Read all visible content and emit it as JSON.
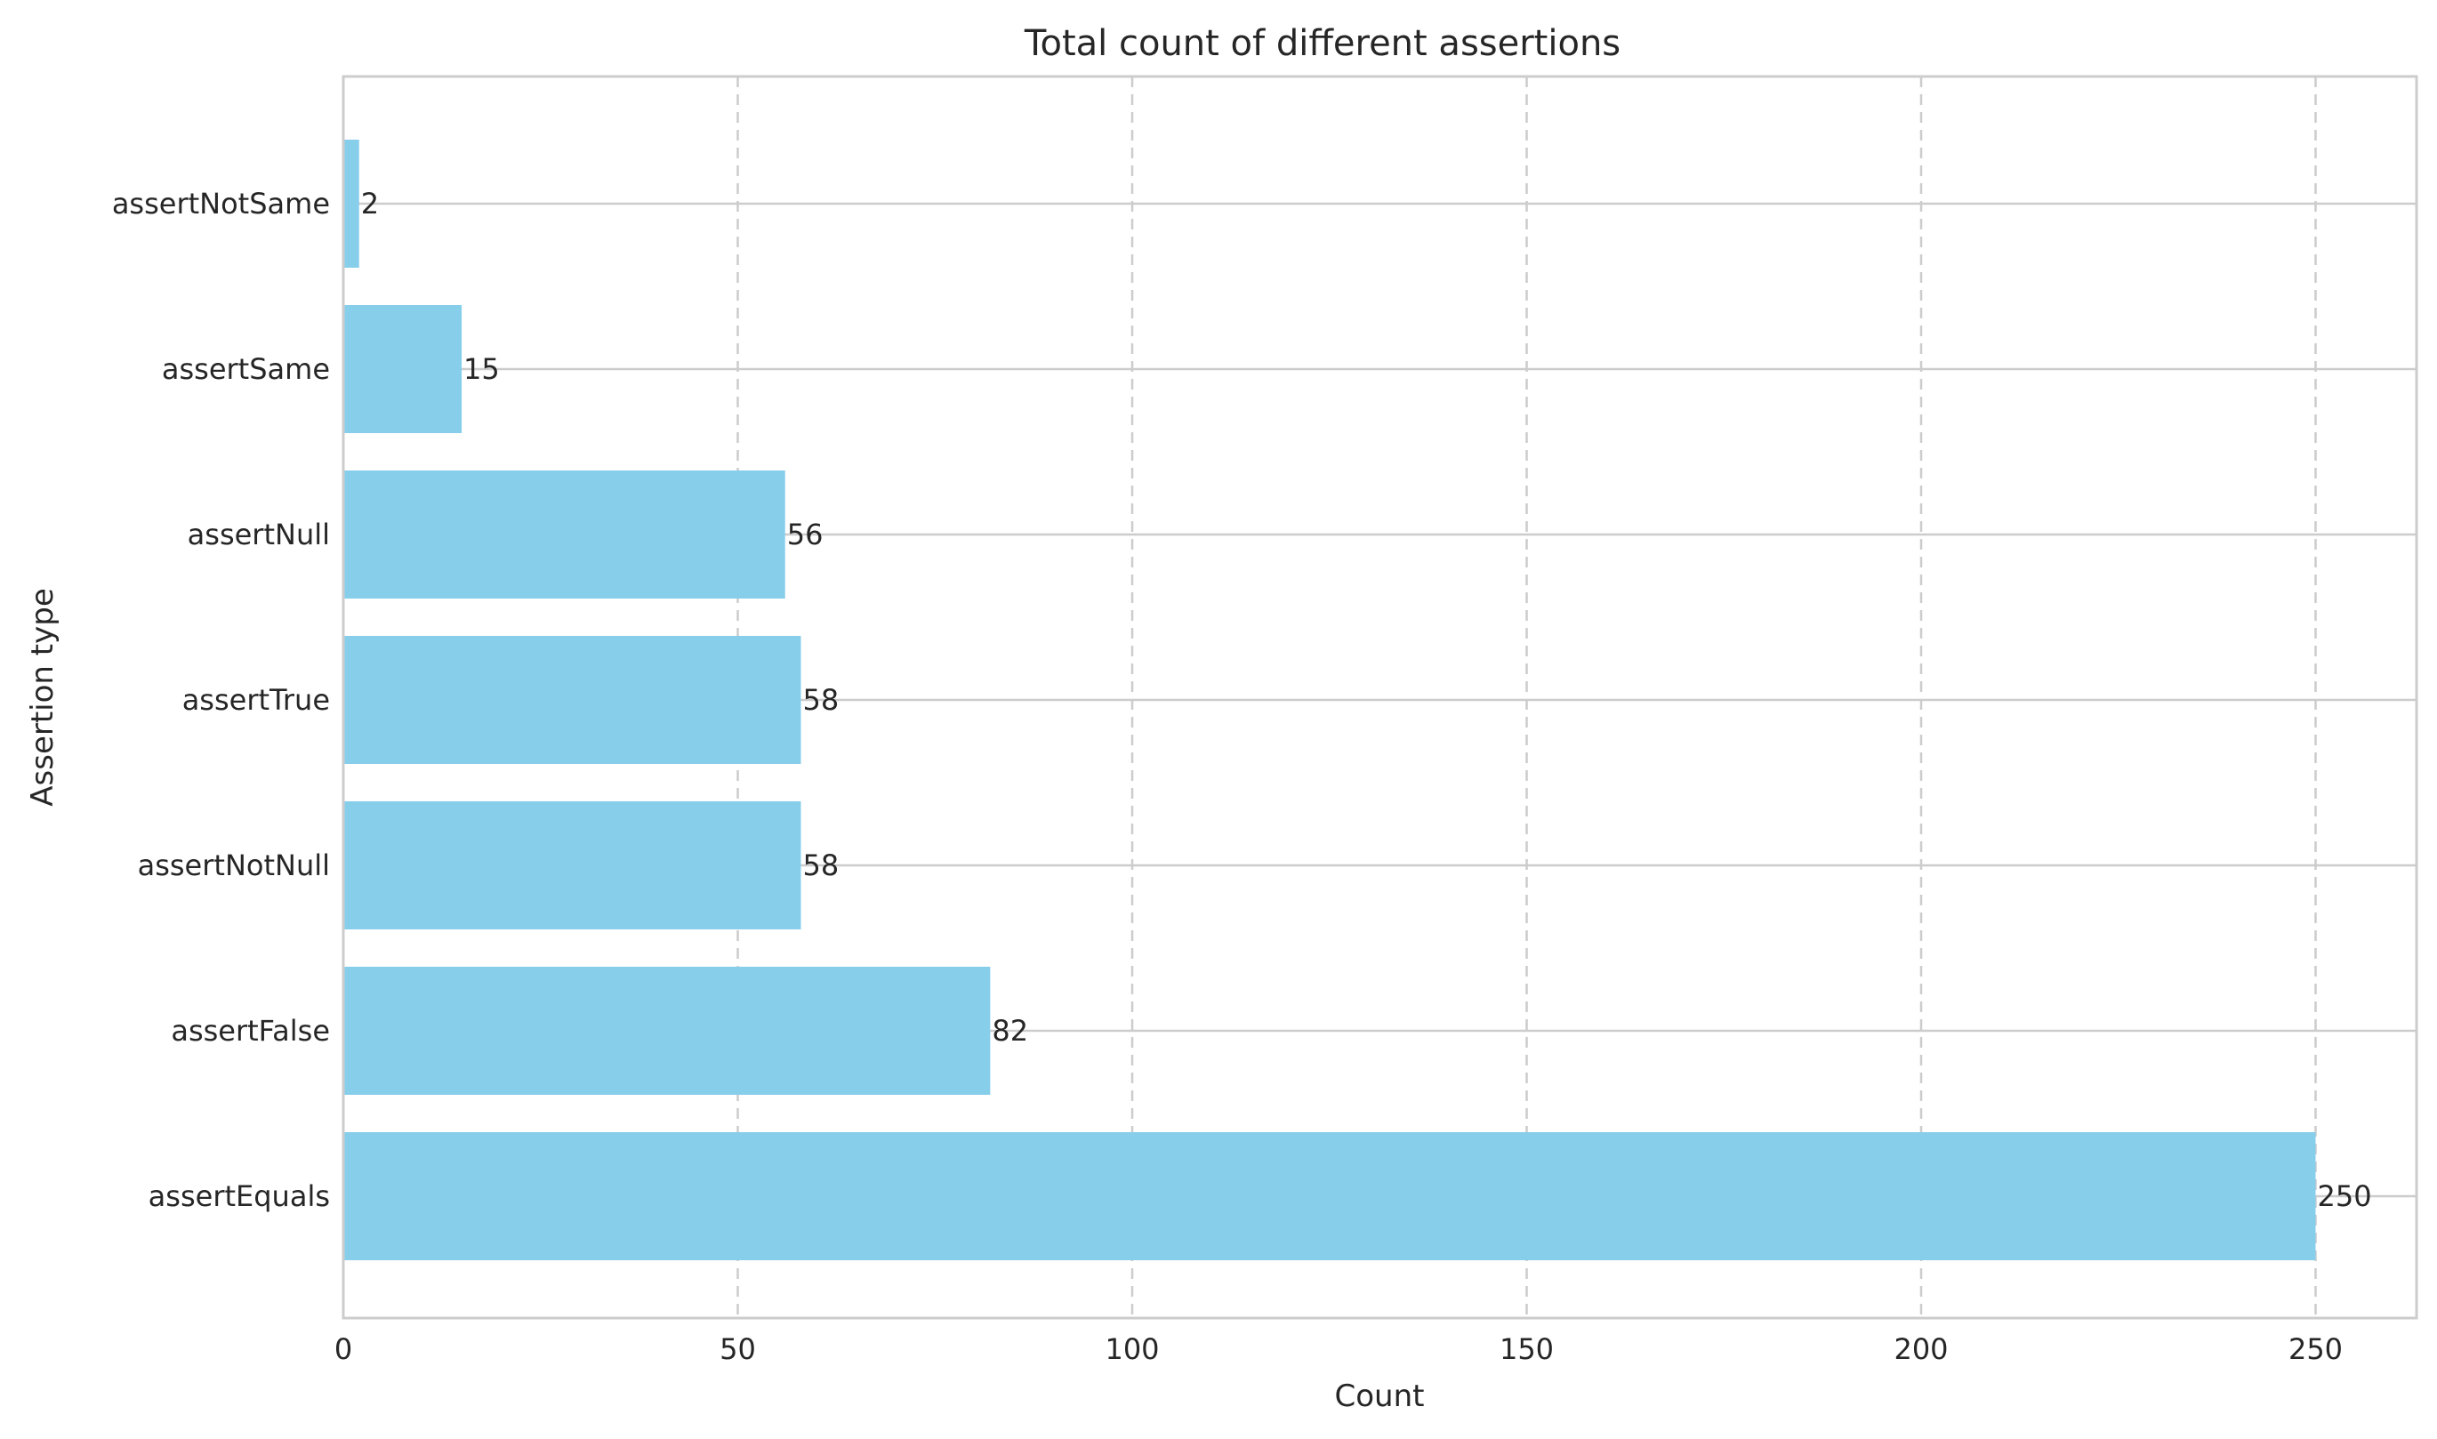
{
  "chart_data": {
    "type": "bar",
    "orientation": "horizontal",
    "title": "Total count of different assertions",
    "xlabel": "Count",
    "ylabel": "Assertion type",
    "categories": [
      "assertEquals",
      "assertFalse",
      "assertNotNull",
      "assertTrue",
      "assertNull",
      "assertSame",
      "assertNotSame"
    ],
    "values": [
      250,
      82,
      58,
      58,
      56,
      15,
      2
    ],
    "xlim": [
      0,
      262.5
    ],
    "xticks": [
      0,
      50,
      100,
      150,
      200,
      250
    ],
    "grid": {
      "x": true,
      "x_style": "dashed",
      "y": true,
      "y_style": "solid"
    },
    "legend": "none",
    "colors": {
      "bar": "#87CEEB",
      "text": "#262626",
      "grid": "#cccccc",
      "spine": "#cccccc"
    }
  }
}
